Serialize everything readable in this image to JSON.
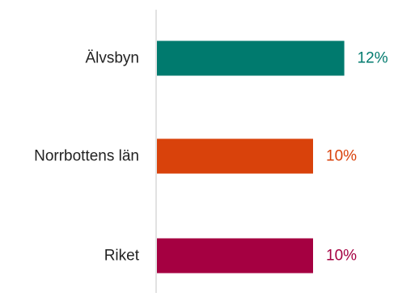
{
  "chart_data": {
    "type": "bar",
    "orientation": "horizontal",
    "categories": [
      "Älvsbyn",
      "Norrbottens län",
      "Riket"
    ],
    "values": [
      12,
      10,
      10
    ],
    "value_labels": [
      "12%",
      "10%",
      "10%"
    ],
    "colors": [
      "#007a6e",
      "#d9420b",
      "#a50041"
    ],
    "title": "",
    "xlabel": "",
    "ylabel": "",
    "xlim": [
      0,
      14
    ],
    "grid": false,
    "legend": "none"
  }
}
